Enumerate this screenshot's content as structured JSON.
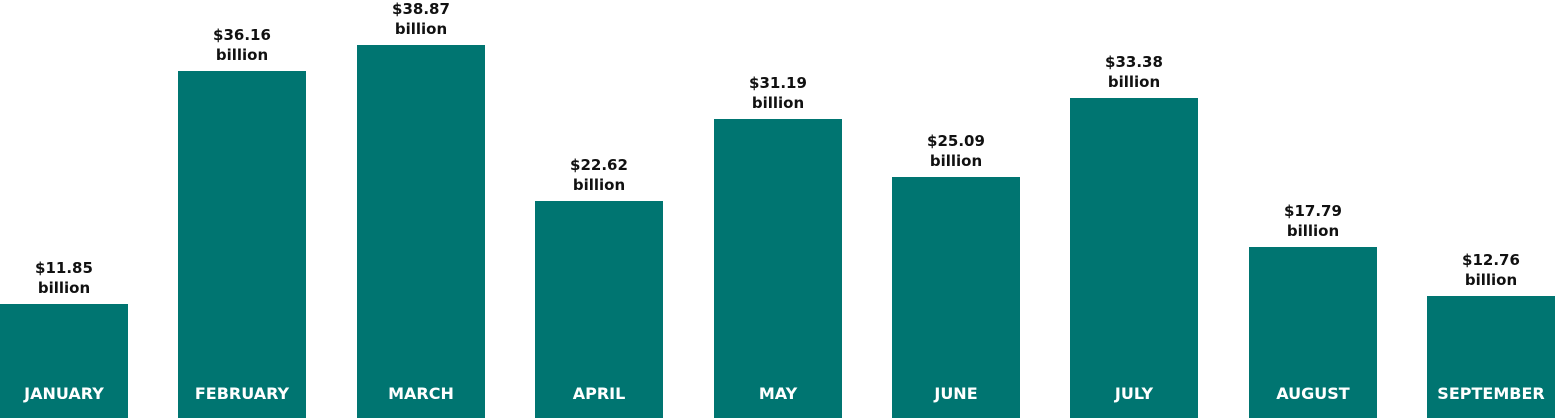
{
  "chart_data": {
    "type": "bar",
    "categories": [
      "JANUARY",
      "FEBRUARY",
      "MARCH",
      "APRIL",
      "MAY",
      "JUNE",
      "JULY",
      "AUGUST",
      "SEPTEMBER"
    ],
    "values": [
      11.85,
      36.16,
      38.87,
      22.62,
      31.19,
      25.09,
      33.38,
      17.79,
      12.76
    ],
    "value_labels": [
      "$11.85 billion",
      "$36.16 billion",
      "$38.87 billion",
      "$22.62 billion",
      "$31.19 billion",
      "$25.09 billion",
      "$33.38 billion",
      "$17.79 billion",
      "$12.76 billion"
    ],
    "color": "#007571"
  }
}
